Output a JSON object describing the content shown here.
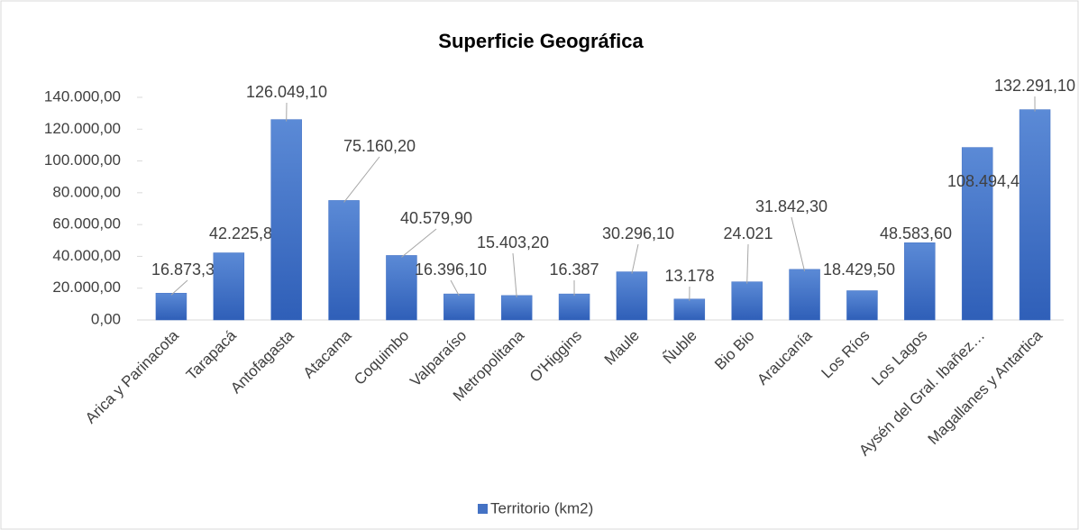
{
  "chart_data": {
    "type": "bar",
    "title": "Superficie Geográfica",
    "categories": [
      "Arica y Parinacota",
      "Tarapacá",
      "Antofagasta",
      "Atacama",
      "Coquimbo",
      "Valparaíso",
      "Metropolitana",
      "O'Higgins",
      "Maule",
      "Ñuble",
      "Bio Bio",
      "Araucanía",
      "Los Ríos",
      "Los Lagos",
      "Aysén del Gral. Ibañez…",
      "Magallanes y Antartica"
    ],
    "series": [
      {
        "name": "Territorio (km2)",
        "color": "#4472c4",
        "values": [
          16873.3,
          42225.8,
          126049.1,
          75160.2,
          40579.9,
          16396.1,
          15403.2,
          16387,
          30296.1,
          13178,
          24021,
          31842.3,
          18429.5,
          48583.6,
          108494.4,
          132291.1
        ],
        "value_labels": [
          "16.873,30",
          "42.225,80",
          "126.049,10",
          "75.160,20",
          "40.579,90",
          "16.396,10",
          "15.403,20",
          "16.387",
          "30.296,10",
          "13.178",
          "24.021",
          "31.842,30",
          "18.429,50",
          "48.583,60",
          "108.494,40",
          "132.291,10"
        ]
      }
    ],
    "ylim": [
      0,
      140000
    ],
    "yticks": [
      {
        "value": 0,
        "label": "0,00"
      },
      {
        "value": 20000,
        "label": "20.000,00"
      },
      {
        "value": 40000,
        "label": "40.000,00"
      },
      {
        "value": 60000,
        "label": "60.000,00"
      },
      {
        "value": 80000,
        "label": "80.000,00"
      },
      {
        "value": 100000,
        "label": "100.000,00"
      },
      {
        "value": 120000,
        "label": "120.000,00"
      },
      {
        "value": 140000,
        "label": "140.000,00"
      }
    ],
    "legend": "bottom"
  }
}
